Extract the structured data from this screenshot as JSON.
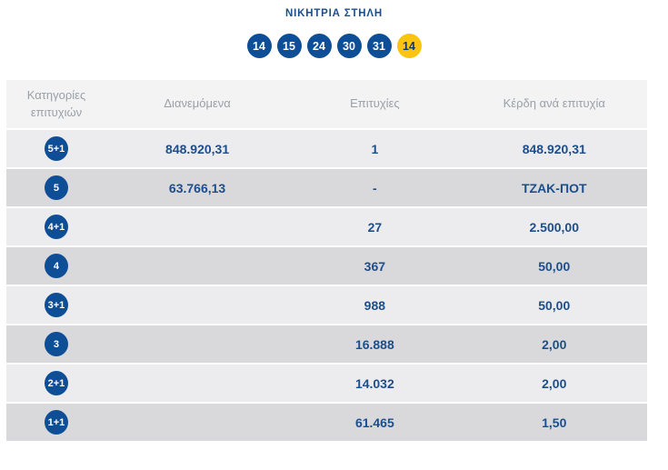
{
  "header": {
    "title": "ΝΙΚΗΤΡΙΑ ΣΤΗΛΗ"
  },
  "draw": {
    "numbers": [
      "14",
      "15",
      "24",
      "30",
      "31"
    ],
    "joker": "14"
  },
  "table": {
    "columns": {
      "category": "Κατηγορίες επιτυχιών",
      "distributed": "Διανεμόμενα",
      "winners": "Επιτυχίες",
      "prize": "Κέρδη ανά επιτυχία"
    },
    "rows": [
      {
        "category": "5+1",
        "distributed": "848.920,31",
        "winners": "1",
        "prize": "848.920,31"
      },
      {
        "category": "5",
        "distributed": "63.766,13",
        "winners": "-",
        "prize": "ΤΖΑΚ-ΠΟΤ"
      },
      {
        "category": "4+1",
        "distributed": "",
        "winners": "27",
        "prize": "2.500,00"
      },
      {
        "category": "4",
        "distributed": "",
        "winners": "367",
        "prize": "50,00"
      },
      {
        "category": "3+1",
        "distributed": "",
        "winners": "988",
        "prize": "50,00"
      },
      {
        "category": "3",
        "distributed": "",
        "winners": "16.888",
        "prize": "2,00"
      },
      {
        "category": "2+1",
        "distributed": "",
        "winners": "14.032",
        "prize": "2,00"
      },
      {
        "category": "1+1",
        "distributed": "",
        "winners": "61.465",
        "prize": "1,50"
      }
    ]
  },
  "colors": {
    "ball_blue": "#0d4e96",
    "joker_yellow": "#fbc412",
    "text_blue": "#1d4e8c",
    "header_text_gray": "#9aa0a8",
    "row_light": "#ececee",
    "row_dark": "#d9d9db",
    "header_bg": "#f3f3f4"
  }
}
